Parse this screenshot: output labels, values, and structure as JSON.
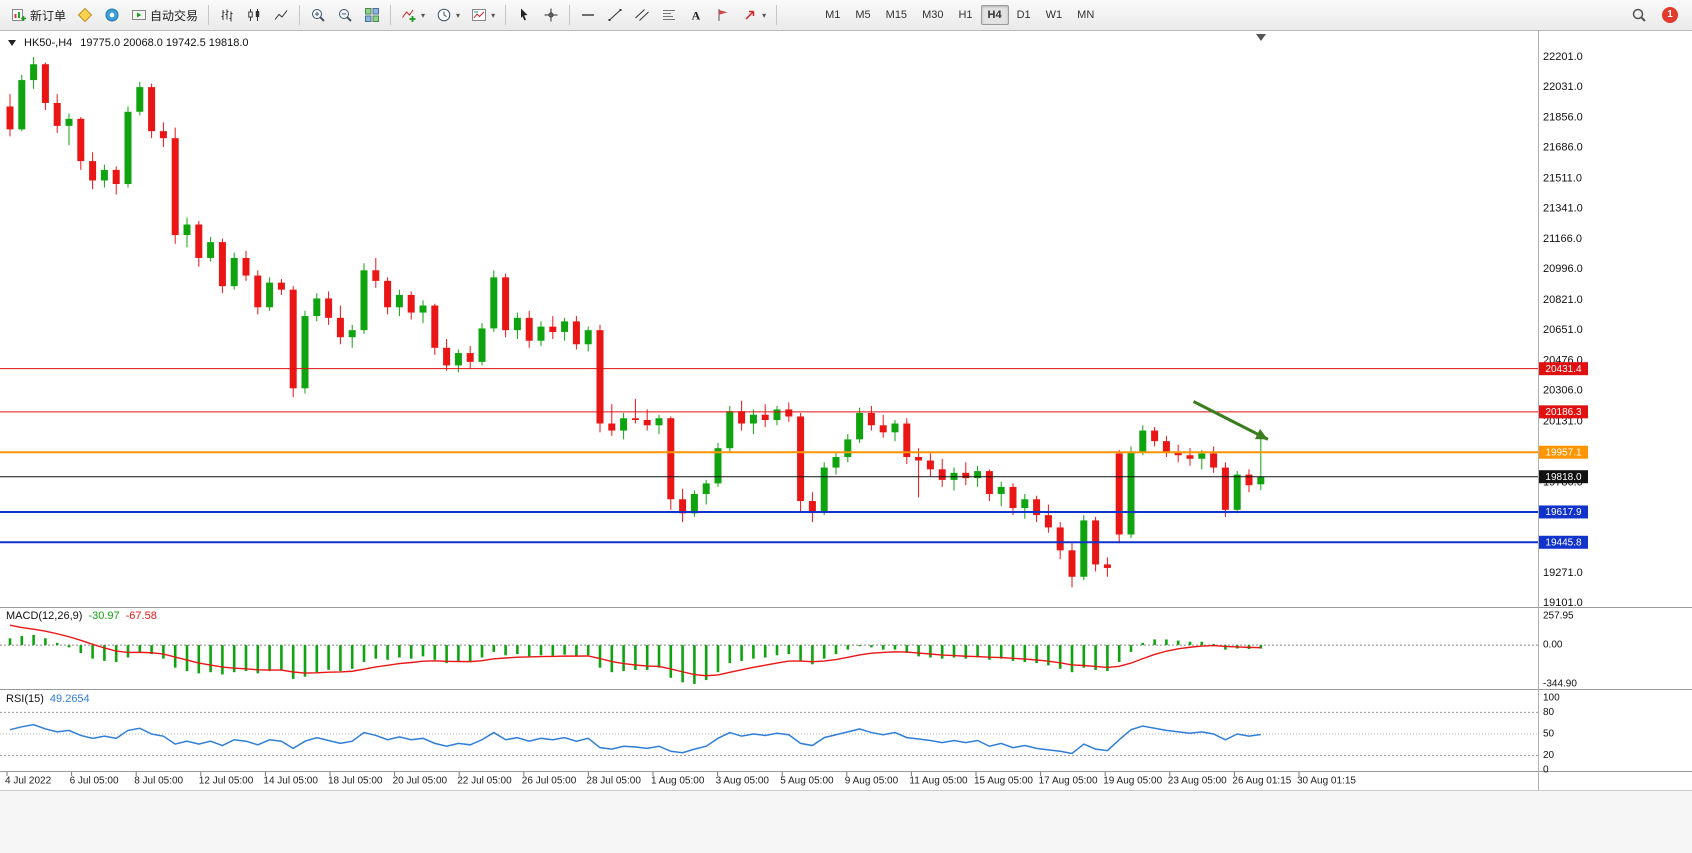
{
  "toolbar": {
    "new_order": "新订单",
    "autotrading": "自动交易",
    "timeframes": [
      "M1",
      "M5",
      "M15",
      "M30",
      "H1",
      "H4",
      "D1",
      "W1",
      "MN"
    ],
    "active_timeframe": "H4",
    "notification_count": "1",
    "icon_names": [
      "new-order-icon",
      "metaeditor-icon",
      "community-icon",
      "autotrading-icon",
      "bar-chart-icon",
      "candlestick-chart-icon",
      "line-chart-icon",
      "zoom-in-icon",
      "zoom-out-icon",
      "tile-windows-icon",
      "indicators-icon",
      "periods-icon",
      "templates-icon",
      "cursor-icon",
      "crosshair-icon",
      "horizontal-line-icon",
      "trendline-icon",
      "channel-icon",
      "fibonacci-icon",
      "text-icon",
      "label-icon",
      "arrows-icon",
      "search-icon"
    ]
  },
  "chart": {
    "symbol_period": "HK50-,H4",
    "ohlc_text": "19775.0 20068.0 19742.5 19818.0"
  },
  "chart_data": {
    "type": "candlestick",
    "symbol": "HK50-",
    "period": "H4",
    "current_bar": {
      "open": 19775.0,
      "high": 20068.0,
      "low": 19742.5,
      "close": 19818.0
    },
    "y_top": 22201.0,
    "y_bottom": 19101.0,
    "y_ticks": [
      22201.0,
      22031.0,
      21856.0,
      21686.0,
      21511.0,
      21341.0,
      21166.0,
      20996.0,
      20821.0,
      20651.0,
      20476.0,
      20306.0,
      20131.0,
      19961.0,
      19786.0,
      19616.0,
      19441.0,
      19271.0,
      19101.0
    ],
    "x_labels": [
      "4 Jul 2022",
      "6 Jul 05:00",
      "8 Jul 05:00",
      "12 Jul 05:00",
      "14 Jul 05:00",
      "18 Jul 05:00",
      "20 Jul 05:00",
      "22 Jul 05:00",
      "26 Jul 05:00",
      "28 Jul 05:00",
      "1 Aug 05:00",
      "3 Aug 05:00",
      "5 Aug 05:00",
      "9 Aug 05:00",
      "11 Aug 05:00",
      "15 Aug 05:00",
      "17 Aug 05:00",
      "19 Aug 05:00",
      "23 Aug 05:00",
      "26 Aug 01:15",
      "30 Aug 01:15"
    ],
    "colors": {
      "up": "#0fa40f",
      "down": "#ea1515"
    },
    "hlines": [
      {
        "price": 20431.4,
        "color": "#e01010",
        "label": "20431.4",
        "width": 1
      },
      {
        "price": 20186.3,
        "color": "#e01010",
        "label": "20186.3",
        "width": 1
      },
      {
        "price": 19957.1,
        "color": "#ff9500",
        "label": "19957.1",
        "width": 2
      },
      {
        "price": 19818.0,
        "color": "#111111",
        "label": "19818.0",
        "width": 1
      },
      {
        "price": 19617.9,
        "color": "#1133cc",
        "label": "19617.9",
        "width": 2
      },
      {
        "price": 19445.8,
        "color": "#1133cc",
        "label": "19445.8",
        "width": 2
      }
    ],
    "trend_arrow": {
      "start_index": 100.3,
      "start_price": 20245,
      "end_index": 106.6,
      "end_price": 20030,
      "color": "#3a7d1e"
    },
    "candles": [
      [
        21920,
        21990,
        21750,
        21790
      ],
      [
        21790,
        22100,
        21780,
        22070
      ],
      [
        22070,
        22201,
        22020,
        22160
      ],
      [
        22160,
        22170,
        21900,
        21940
      ],
      [
        21940,
        21990,
        21770,
        21810
      ],
      [
        21810,
        21880,
        21700,
        21850
      ],
      [
        21850,
        21860,
        21560,
        21610
      ],
      [
        21610,
        21660,
        21450,
        21500
      ],
      [
        21500,
        21590,
        21460,
        21560
      ],
      [
        21560,
        21580,
        21420,
        21480
      ],
      [
        21480,
        21920,
        21460,
        21890
      ],
      [
        21890,
        22060,
        21870,
        22030
      ],
      [
        22030,
        22050,
        21740,
        21780
      ],
      [
        21780,
        21830,
        21690,
        21740
      ],
      [
        21740,
        21800,
        21140,
        21190
      ],
      [
        21190,
        21290,
        21120,
        21250
      ],
      [
        21250,
        21270,
        21010,
        21060
      ],
      [
        21060,
        21180,
        21040,
        21150
      ],
      [
        21150,
        21170,
        20860,
        20900
      ],
      [
        20900,
        21090,
        20880,
        21060
      ],
      [
        21060,
        21100,
        20930,
        20960
      ],
      [
        20960,
        20990,
        20740,
        20780
      ],
      [
        20780,
        20950,
        20760,
        20920
      ],
      [
        20920,
        20940,
        20850,
        20880
      ],
      [
        20880,
        20900,
        20270,
        20320
      ],
      [
        20320,
        20760,
        20290,
        20730
      ],
      [
        20730,
        20860,
        20700,
        20830
      ],
      [
        20830,
        20870,
        20680,
        20720
      ],
      [
        20720,
        20790,
        20570,
        20610
      ],
      [
        20610,
        20680,
        20550,
        20650
      ],
      [
        20650,
        21030,
        20630,
        20990
      ],
      [
        20990,
        21060,
        20890,
        20930
      ],
      [
        20930,
        20950,
        20740,
        20780
      ],
      [
        20780,
        20880,
        20730,
        20850
      ],
      [
        20850,
        20870,
        20710,
        20750
      ],
      [
        20750,
        20820,
        20690,
        20790
      ],
      [
        20790,
        20800,
        20510,
        20550
      ],
      [
        20550,
        20600,
        20420,
        20450
      ],
      [
        20450,
        20540,
        20410,
        20520
      ],
      [
        20520,
        20560,
        20430,
        20470
      ],
      [
        20470,
        20690,
        20450,
        20660
      ],
      [
        20660,
        20990,
        20640,
        20950
      ],
      [
        20950,
        20970,
        20610,
        20650
      ],
      [
        20650,
        20750,
        20600,
        20720
      ],
      [
        20720,
        20760,
        20550,
        20590
      ],
      [
        20590,
        20700,
        20560,
        20670
      ],
      [
        20670,
        20730,
        20600,
        20640
      ],
      [
        20640,
        20720,
        20590,
        20700
      ],
      [
        20700,
        20730,
        20540,
        20570
      ],
      [
        20570,
        20670,
        20530,
        20650
      ],
      [
        20650,
        20680,
        20070,
        20120
      ],
      [
        20120,
        20230,
        20050,
        20080
      ],
      [
        20080,
        20180,
        20030,
        20150
      ],
      [
        20150,
        20260,
        20120,
        20140
      ],
      [
        20140,
        20200,
        20080,
        20110
      ],
      [
        20110,
        20170,
        20060,
        20150
      ],
      [
        20150,
        20160,
        19630,
        19690
      ],
      [
        19690,
        19750,
        19560,
        19610
      ],
      [
        19610,
        19740,
        19590,
        19720
      ],
      [
        19720,
        19800,
        19660,
        19780
      ],
      [
        19780,
        20010,
        19760,
        19980
      ],
      [
        19980,
        20220,
        19960,
        20190
      ],
      [
        20190,
        20250,
        20080,
        20120
      ],
      [
        20120,
        20200,
        20060,
        20170
      ],
      [
        20170,
        20230,
        20100,
        20140
      ],
      [
        20140,
        20220,
        20110,
        20200
      ],
      [
        20200,
        20240,
        20130,
        20160
      ],
      [
        20160,
        20180,
        19620,
        19680
      ],
      [
        19680,
        19730,
        19560,
        19620
      ],
      [
        19620,
        19900,
        19600,
        19870
      ],
      [
        19870,
        19960,
        19830,
        19930
      ],
      [
        19930,
        20060,
        19900,
        20030
      ],
      [
        20030,
        20210,
        20010,
        20180
      ],
      [
        20180,
        20220,
        20080,
        20110
      ],
      [
        20110,
        20170,
        20040,
        20070
      ],
      [
        20070,
        20140,
        20020,
        20120
      ],
      [
        20120,
        20150,
        19890,
        19930
      ],
      [
        19930,
        19980,
        19700,
        19910
      ],
      [
        19910,
        19950,
        19820,
        19860
      ],
      [
        19860,
        19920,
        19760,
        19800
      ],
      [
        19800,
        19870,
        19740,
        19840
      ],
      [
        19840,
        19900,
        19770,
        19810
      ],
      [
        19810,
        19880,
        19760,
        19850
      ],
      [
        19850,
        19860,
        19680,
        19720
      ],
      [
        19720,
        19790,
        19650,
        19760
      ],
      [
        19760,
        19780,
        19600,
        19640
      ],
      [
        19640,
        19720,
        19580,
        19690
      ],
      [
        19690,
        19710,
        19560,
        19600
      ],
      [
        19600,
        19660,
        19500,
        19530
      ],
      [
        19530,
        19560,
        19350,
        19400
      ],
      [
        19400,
        19440,
        19190,
        19250
      ],
      [
        19250,
        19600,
        19230,
        19570
      ],
      [
        19570,
        19590,
        19280,
        19320
      ],
      [
        19320,
        19360,
        19250,
        19300
      ],
      [
        19950,
        19970,
        19440,
        19490
      ],
      [
        19490,
        19990,
        19470,
        19960
      ],
      [
        19960,
        20110,
        19940,
        20080
      ],
      [
        20080,
        20100,
        19990,
        20020
      ],
      [
        20020,
        20050,
        19930,
        19960
      ],
      [
        19960,
        20000,
        19900,
        19940
      ],
      [
        19940,
        19980,
        19880,
        19920
      ],
      [
        19920,
        19970,
        19860,
        19950
      ],
      [
        19950,
        19990,
        19840,
        19870
      ],
      [
        19870,
        19900,
        19590,
        19630
      ],
      [
        19630,
        19850,
        19610,
        19830
      ],
      [
        19830,
        19860,
        19730,
        19770
      ],
      [
        19775,
        20068,
        19742.5,
        19818
      ]
    ]
  },
  "indicators": {
    "macd": {
      "label": "MACD(12,26,9)",
      "main_value": "-30.97",
      "signal_value": "-67.58",
      "hist_color": "#0fa40f",
      "signal_color": "#ea1515",
      "scale_ticks": [
        {
          "v": 257.95,
          "label": "257.95"
        },
        {
          "v": 0,
          "label": "0.00"
        },
        {
          "v": -344.9,
          "label": "-344.90"
        }
      ],
      "histogram": [
        60,
        80,
        90,
        60,
        20,
        -20,
        -70,
        -120,
        -140,
        -150,
        -110,
        -60,
        -80,
        -120,
        -200,
        -230,
        -250,
        -240,
        -260,
        -240,
        -230,
        -250,
        -230,
        -220,
        -300,
        -280,
        -240,
        -220,
        -230,
        -210,
        -150,
        -120,
        -130,
        -110,
        -120,
        -100,
        -130,
        -160,
        -150,
        -150,
        -110,
        -60,
        -90,
        -80,
        -100,
        -90,
        -95,
        -85,
        -100,
        -90,
        -200,
        -240,
        -230,
        -220,
        -220,
        -200,
        -290,
        -330,
        -344,
        -310,
        -240,
        -160,
        -140,
        -120,
        -110,
        -90,
        -80,
        -140,
        -170,
        -120,
        -80,
        -40,
        -10,
        -20,
        -40,
        -40,
        -70,
        -100,
        -110,
        -120,
        -110,
        -120,
        -110,
        -130,
        -120,
        -140,
        -150,
        -160,
        -180,
        -210,
        -240,
        -200,
        -220,
        -230,
        -150,
        -60,
        20,
        50,
        50,
        40,
        30,
        30,
        10,
        -40,
        -30,
        -35,
        -31
      ]
    },
    "rsi": {
      "label": "RSI(15)",
      "value": "49.2654",
      "line_color": "#2f7ed8",
      "scale_ticks": [
        100,
        80,
        50,
        20,
        0
      ],
      "levels": [
        80,
        50,
        20
      ],
      "values": [
        56,
        60,
        63,
        57,
        53,
        55,
        48,
        44,
        47,
        44,
        55,
        58,
        50,
        47,
        36,
        40,
        36,
        40,
        34,
        42,
        40,
        35,
        42,
        40,
        30,
        40,
        45,
        41,
        37,
        40,
        52,
        48,
        42,
        46,
        42,
        44,
        37,
        33,
        37,
        35,
        42,
        52,
        42,
        45,
        40,
        44,
        42,
        45,
        40,
        44,
        31,
        29,
        33,
        32,
        30,
        33,
        26,
        24,
        29,
        33,
        44,
        52,
        47,
        50,
        48,
        51,
        49,
        37,
        34,
        45,
        49,
        53,
        57,
        52,
        49,
        52,
        45,
        43,
        41,
        38,
        41,
        38,
        41,
        33,
        37,
        31,
        34,
        30,
        28,
        26,
        23,
        36,
        29,
        27,
        42,
        56,
        61,
        58,
        55,
        53,
        51,
        53,
        50,
        42,
        50,
        47,
        49.27
      ]
    }
  }
}
